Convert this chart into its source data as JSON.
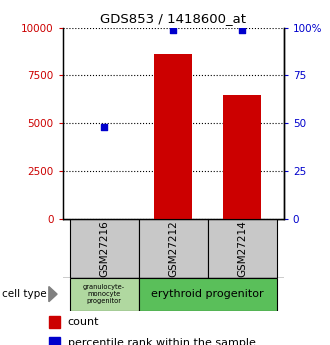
{
  "title": "GDS853 / 1418600_at",
  "samples": [
    "GSM27216",
    "GSM27212",
    "GSM27214"
  ],
  "counts": [
    30,
    8600,
    6500
  ],
  "percentiles": [
    48,
    99,
    99
  ],
  "ylim_left": [
    0,
    10000
  ],
  "ylim_right": [
    0,
    100
  ],
  "yticks_left": [
    0,
    2500,
    5000,
    7500,
    10000
  ],
  "yticks_right": [
    0,
    25,
    50,
    75,
    100
  ],
  "bar_color": "#cc0000",
  "dot_color": "#0000cc",
  "granulocyte_color": "#b0d8a0",
  "erythroid_color": "#5abf5a",
  "tick_color_left": "#cc0000",
  "tick_color_right": "#0000cc",
  "bar_width": 0.55,
  "sample_box_color": "#c8c8c8",
  "legend_square_size": 8
}
